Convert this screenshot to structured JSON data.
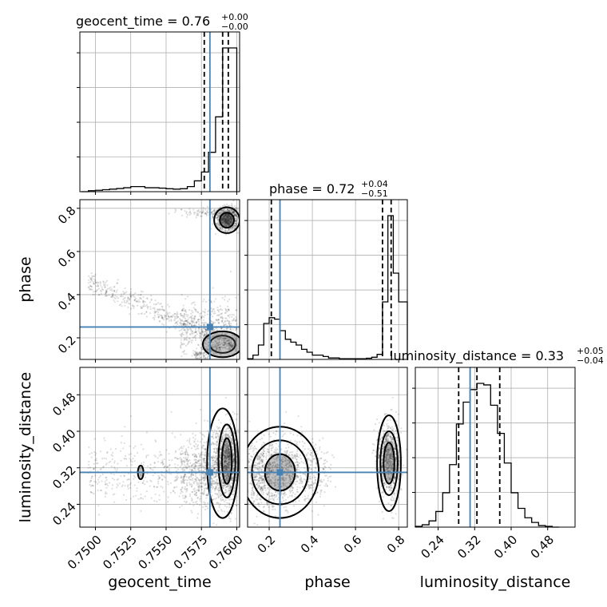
{
  "truth_color": "#4682b4",
  "chart_data": {
    "type": "corner",
    "parameters": [
      "geocent_time",
      "phase",
      "luminosity_distance"
    ],
    "truths": {
      "geocent_time": 0.7581,
      "phase": 0.25,
      "luminosity_distance": 0.31
    },
    "titles": [
      {
        "param": "geocent_time",
        "text": "geocent_time = 0.76",
        "plus": "+0.00",
        "minus": "−0.00"
      },
      {
        "param": "phase",
        "text": "phase = 0.72",
        "plus": "+0.04",
        "minus": "−0.51"
      },
      {
        "param": "luminosity_distance",
        "text": "luminosity_distance = 0.33",
        "plus": "+0.05",
        "minus": "−0.04"
      }
    ],
    "axis_labels": {
      "geocent_time": "geocent_time",
      "phase": "phase",
      "luminosity_distance": "luminosity_distance"
    },
    "tick_labels": {
      "geocent_time": [
        "0.7500",
        "0.7525",
        "0.7550",
        "0.7575",
        "0.7600"
      ],
      "phase": [
        "0.2",
        "0.4",
        "0.6",
        "0.8"
      ],
      "luminosity_distance": [
        "0.24",
        "0.32",
        "0.40",
        "0.48"
      ]
    },
    "ticks": {
      "geocent_time": [
        0.75,
        0.7525,
        0.755,
        0.7575,
        0.76
      ],
      "phase": [
        0.2,
        0.4,
        0.6,
        0.8
      ],
      "luminosity_distance": [
        0.24,
        0.32,
        0.4,
        0.48
      ]
    },
    "ranges": {
      "geocent_time": [
        0.7489,
        0.7602
      ],
      "phase": [
        0.1,
        0.84
      ],
      "luminosity_distance": [
        0.19,
        0.54
      ]
    },
    "quantiles": {
      "geocent_time": [
        0.7577,
        0.759,
        0.7594
      ],
      "phase": [
        0.21,
        0.725,
        0.765
      ],
      "luminosity_distance": [
        0.285,
        0.325,
        0.375
      ]
    },
    "histograms": {
      "geocent_time": {
        "edges": [
          0.749,
          0.7495,
          0.75,
          0.7505,
          0.751,
          0.7515,
          0.752,
          0.7525,
          0.753,
          0.7535,
          0.754,
          0.7545,
          0.755,
          0.7555,
          0.756,
          0.7565,
          0.757,
          0.7575,
          0.758,
          0.7585,
          0.759,
          0.7595,
          0.76
        ],
        "counts": [
          0.0,
          0.5,
          0.7,
          1.0,
          1.3,
          1.6,
          2.0,
          2.6,
          2.6,
          2.0,
          2.0,
          1.8,
          1.5,
          1.3,
          1.5,
          2.6,
          5.5,
          10.0,
          20.0,
          38.0,
          73.0,
          73.0
        ]
      },
      "phase": {
        "edges": [
          0.1,
          0.125,
          0.15,
          0.175,
          0.2,
          0.225,
          0.25,
          0.275,
          0.3,
          0.325,
          0.35,
          0.375,
          0.4,
          0.425,
          0.45,
          0.475,
          0.5,
          0.525,
          0.55,
          0.575,
          0.6,
          0.625,
          0.65,
          0.675,
          0.7,
          0.725,
          0.75,
          0.775,
          0.8,
          0.84
        ],
        "counts": [
          0.5,
          3.0,
          10.0,
          25.0,
          29.0,
          28.0,
          20.0,
          14.0,
          12.0,
          10.0,
          7.0,
          5.0,
          3.0,
          3.0,
          2.0,
          1.0,
          1.0,
          0.5,
          0.5,
          0.5,
          0.5,
          0.5,
          0.8,
          1.5,
          3.5,
          40.0,
          100.0,
          60.0,
          40.0
        ]
      },
      "luminosity_distance": {
        "edges": [
          0.19,
          0.205,
          0.22,
          0.235,
          0.25,
          0.265,
          0.28,
          0.295,
          0.31,
          0.325,
          0.34,
          0.355,
          0.37,
          0.385,
          0.4,
          0.415,
          0.43,
          0.445,
          0.46,
          0.475,
          0.49,
          0.505
        ],
        "counts": [
          0.5,
          1.5,
          4.0,
          10.0,
          22.0,
          40.0,
          66.0,
          80.0,
          88.0,
          92.0,
          91.0,
          78.0,
          60.0,
          41.0,
          22.0,
          12.0,
          6.0,
          3.0,
          1.0,
          0.5,
          0.0
        ]
      }
    },
    "grid": true
  }
}
